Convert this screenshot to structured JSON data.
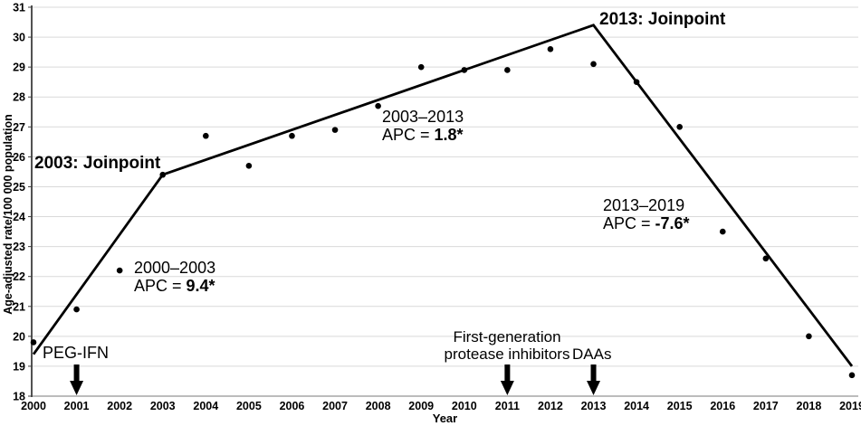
{
  "colors": {
    "background": "#ffffff",
    "text": "#000000",
    "grid": "#d9d9d9",
    "x_axis": "#a6a6a6",
    "y_axis": "#3f3f3f",
    "trend_line": "#000000",
    "point": "#000000"
  },
  "chart_data": {
    "type": "scatter",
    "subtype": "joinpoint regression: observed annual points plus modeled trend line with two joinpoints",
    "title": "",
    "xlabel": "Year",
    "ylabel": "Age-adjusted rate/100 000 population",
    "xlim": [
      2000,
      2019
    ],
    "ylim": [
      18,
      31
    ],
    "grid": "horizontal gridlines",
    "legend_position": "none",
    "x_ticks": [
      2000,
      2001,
      2002,
      2003,
      2004,
      2005,
      2006,
      2007,
      2008,
      2009,
      2010,
      2011,
      2012,
      2013,
      2014,
      2015,
      2016,
      2017,
      2018,
      2019
    ],
    "y_ticks": [
      18,
      19,
      20,
      21,
      22,
      23,
      24,
      25,
      26,
      27,
      28,
      29,
      30,
      31
    ],
    "observed": {
      "x": [
        2000,
        2001,
        2002,
        2003,
        2004,
        2005,
        2006,
        2007,
        2008,
        2009,
        2010,
        2011,
        2012,
        2013,
        2014,
        2015,
        2016,
        2017,
        2018,
        2019
      ],
      "y": [
        19.8,
        20.9,
        22.2,
        25.4,
        26.7,
        25.7,
        26.7,
        26.9,
        27.7,
        29.0,
        28.9,
        28.9,
        29.6,
        29.1,
        28.5,
        27.0,
        23.5,
        22.6,
        20.0,
        18.7
      ]
    },
    "trend_line": {
      "x": [
        2000,
        2003,
        2013,
        2019
      ],
      "y": [
        19.4,
        25.4,
        30.4,
        19.0
      ]
    },
    "joinpoint_years": [
      2003,
      2013
    ],
    "segments": [
      {
        "period": "2000–2003",
        "apc_text": "APC = 9.4*"
      },
      {
        "period": "2003–2013",
        "apc_text": "APC = 1.8*"
      },
      {
        "period": "2013–2019",
        "apc_text": "APC = -7.6*"
      }
    ],
    "event_arrows": [
      {
        "year": 2001,
        "label": "PEG-IFN"
      },
      {
        "year": 2011,
        "label": "First-generation protease inhibitors"
      },
      {
        "year": 2013,
        "label": "DAAs"
      }
    ]
  },
  "annotations": {
    "joinpoint_2003": "2003: Joinpoint",
    "joinpoint_2013": "2013: Joinpoint",
    "apc_segments": [
      {
        "period": "2000–2003",
        "prefix": "APC = ",
        "value": "9.4*"
      },
      {
        "period": "2003–2013",
        "prefix": "APC = ",
        "value": "1.8*"
      },
      {
        "period": "2013–2019",
        "prefix": "APC = ",
        "value": "-7.6*"
      }
    ],
    "peg_ifn": "PEG-IFN",
    "first_generation_line1": "First-generation",
    "first_generation_line2": "protease inhibitors",
    "daas": "DAAs"
  }
}
